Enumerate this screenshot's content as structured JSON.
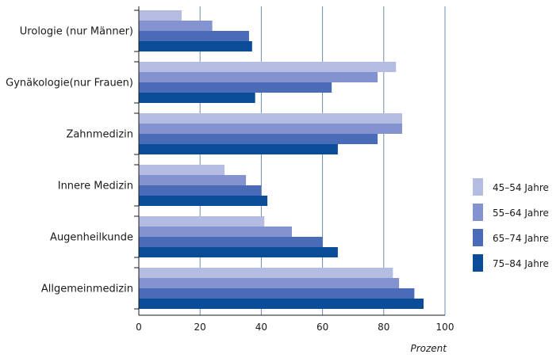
{
  "chart_data": {
    "type": "bar",
    "orientation": "horizontal",
    "categories": [
      "Urologie (nur Männer)",
      "Gynäkologie(nur Frauen)",
      "Zahnmedizin",
      "Innere Medizin",
      "Augenheilkunde",
      "Allgemeinmedizin"
    ],
    "series": [
      {
        "name": "45–54 Jahre",
        "color": "#b4bce2",
        "values": [
          14,
          84,
          86,
          28,
          41,
          83
        ]
      },
      {
        "name": "55–64 Jahre",
        "color": "#8293cf",
        "values": [
          24,
          78,
          86,
          35,
          50,
          85
        ]
      },
      {
        "name": "65–74 Jahre",
        "color": "#4a6bb7",
        "values": [
          36,
          63,
          78,
          40,
          60,
          90
        ]
      },
      {
        "name": "75–84 Jahre",
        "color": "#0a4c97",
        "values": [
          37,
          38,
          65,
          42,
          65,
          93
        ]
      }
    ],
    "xlabel": "Prozent",
    "xlim": [
      0,
      100
    ],
    "xticks": [
      0,
      20,
      40,
      60,
      80,
      100
    ],
    "grid": true,
    "grid_color": "#6f8bb0",
    "legend_position": "right"
  }
}
